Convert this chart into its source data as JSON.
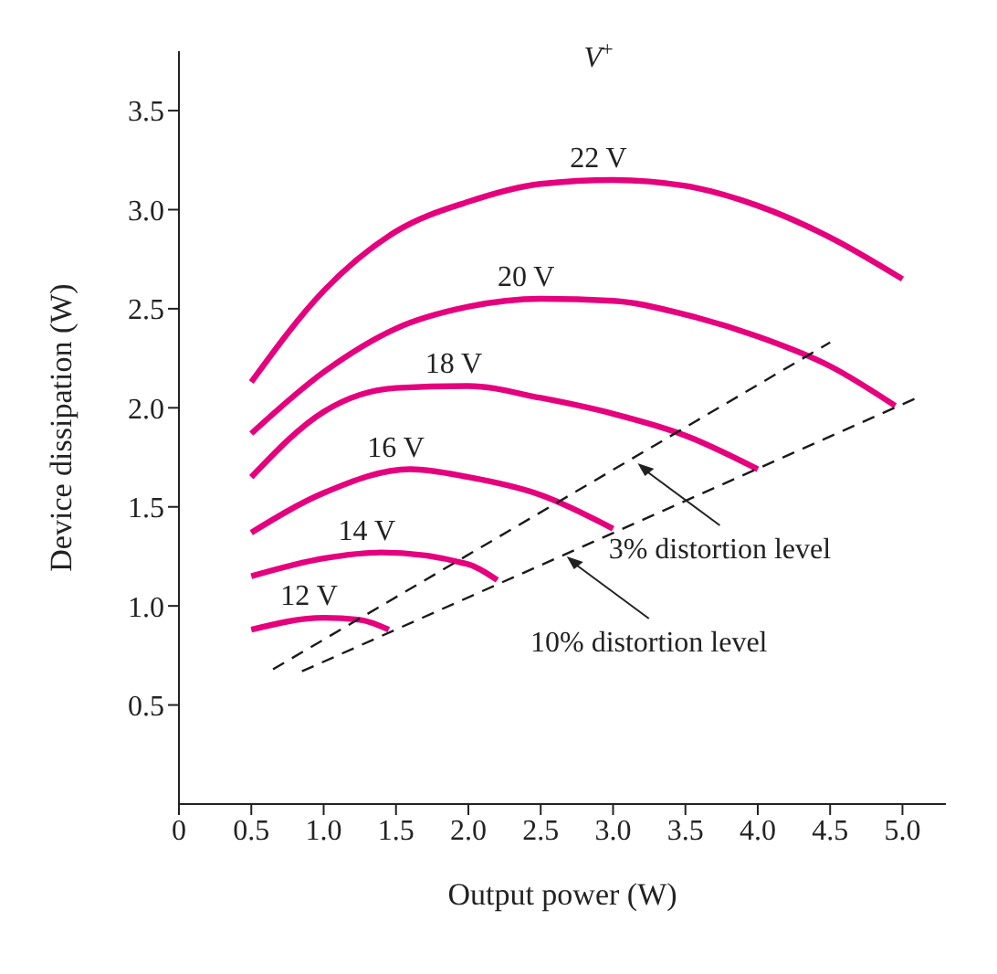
{
  "chart_data": {
    "type": "line",
    "xlabel": "Output power (W)",
    "ylabel": "Device dissipation (W)",
    "legend_title": "V$^{+}$",
    "xlim": [
      0,
      5.3
    ],
    "ylim": [
      0,
      3.8
    ],
    "xticks": [
      0,
      0.5,
      {
        "value": 1,
        "label": "1.0"
      },
      1.5,
      {
        "value": 2,
        "label": "2.0"
      },
      2.5,
      {
        "value": 3,
        "label": "3.0"
      },
      3.5,
      {
        "value": 4,
        "label": "4.0"
      },
      4.5,
      {
        "value": 5,
        "label": "5.0"
      }
    ],
    "yticks": [
      0.5,
      {
        "value": 1,
        "label": "1.0"
      },
      1.5,
      {
        "value": 2,
        "label": "2.0"
      },
      2.5,
      {
        "value": 3,
        "label": "3.0"
      },
      3.5
    ],
    "marker": "none",
    "line_style": "solid",
    "series": [
      {
        "name": "22 V",
        "color": "#e5007d",
        "x": [
          0.5,
          1.0,
          1.5,
          2.0,
          2.5,
          3.0,
          3.5,
          4.0,
          4.5,
          5.0
        ],
        "values": [
          2.13,
          2.59,
          2.89,
          3.04,
          3.13,
          3.15,
          3.12,
          3.02,
          2.86,
          2.65
        ]
      },
      {
        "name": "20 V",
        "color": "#e5007d",
        "x": [
          0.5,
          1.0,
          1.5,
          2.0,
          2.5,
          3.0,
          3.5,
          4.0,
          4.5,
          4.95
        ],
        "values": [
          1.87,
          2.18,
          2.4,
          2.51,
          2.55,
          2.54,
          2.47,
          2.36,
          2.21,
          2.01
        ]
      },
      {
        "name": "18 V",
        "color": "#e5007d",
        "x": [
          0.5,
          1.0,
          1.5,
          2.0,
          2.5,
          3.0,
          3.5,
          4.0
        ],
        "values": [
          1.65,
          1.98,
          2.1,
          2.11,
          2.05,
          1.97,
          1.86,
          1.69
        ]
      },
      {
        "name": "16 V",
        "color": "#e5007d",
        "x": [
          0.5,
          1.0,
          1.6,
          2.0,
          2.5,
          3.0
        ],
        "values": [
          1.37,
          1.57,
          1.69,
          1.65,
          1.56,
          1.39
        ]
      },
      {
        "name": "14 V",
        "color": "#e5007d",
        "x": [
          0.5,
          1.0,
          1.4,
          2.0,
          2.2
        ],
        "values": [
          1.15,
          1.24,
          1.27,
          1.21,
          1.13
        ]
      },
      {
        "name": "12 V",
        "color": "#e5007d",
        "x": [
          0.5,
          1.0,
          1.25,
          1.45
        ],
        "values": [
          0.88,
          0.94,
          0.93,
          0.88
        ]
      },
      {
        "color": "#1a1a1a",
        "line_style": "dashed",
        "x": [
          0.65,
          4.5
        ],
        "values": [
          0.68,
          2.33
        ]
      },
      {
        "color": "#1a1a1a",
        "line_style": "dashed",
        "x": [
          0.85,
          5.1
        ],
        "values": [
          0.67,
          2.05
        ]
      }
    ],
    "annotations": [
      {
        "text": "3% distortion level",
        "x": 3.17,
        "y": 1.72
      },
      {
        "text": "10% distortion level",
        "x": 2.68,
        "y": 1.25
      }
    ]
  }
}
